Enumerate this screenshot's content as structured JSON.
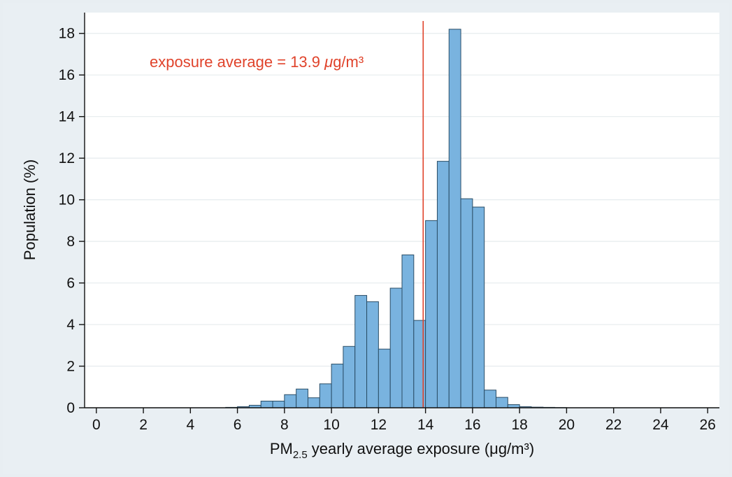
{
  "chart_data": {
    "type": "bar",
    "subtype": "histogram",
    "bin_width": 0.5,
    "bin_starts": [
      5.5,
      6.0,
      6.5,
      7.0,
      7.5,
      8.0,
      8.5,
      9.0,
      9.5,
      10.0,
      10.5,
      11.0,
      11.5,
      12.0,
      12.5,
      13.0,
      13.5,
      14.0,
      14.5,
      15.0,
      15.5,
      16.0,
      16.5,
      17.0,
      17.5,
      18.0,
      18.5,
      19.0,
      19.5
    ],
    "values": [
      0.02,
      0.05,
      0.12,
      0.32,
      0.32,
      0.63,
      0.9,
      0.48,
      1.15,
      2.1,
      2.95,
      5.4,
      5.1,
      2.82,
      5.75,
      7.35,
      4.2,
      9.0,
      11.85,
      18.2,
      10.05,
      9.65,
      0.85,
      0.5,
      0.15,
      0.05,
      0.03,
      0.02,
      0.01
    ],
    "x_label_main": "PM",
    "x_label_sub": "2.5",
    "x_label_rest": " yearly average exposure (μg/m³)",
    "ylabel": "Population (%)",
    "xlim": [
      -0.5,
      26.5
    ],
    "ylim": [
      0,
      19
    ],
    "x_ticks": [
      0,
      2,
      4,
      6,
      8,
      10,
      12,
      14,
      16,
      18,
      20,
      22,
      24,
      26
    ],
    "y_ticks": [
      0,
      2,
      4,
      6,
      8,
      10,
      12,
      14,
      16,
      18
    ],
    "grid": "horizontal",
    "bar_fill": "#79b3df",
    "bar_stroke": "#2a4d66",
    "reference_line": {
      "x": 13.9,
      "color": "#e0432b"
    },
    "annotation_prefix": "exposure average = 13.9 ",
    "annotation_unit_italic": "μ",
    "annotation_unit_rest": "g/m³",
    "annotation_color": "#e0432b"
  }
}
